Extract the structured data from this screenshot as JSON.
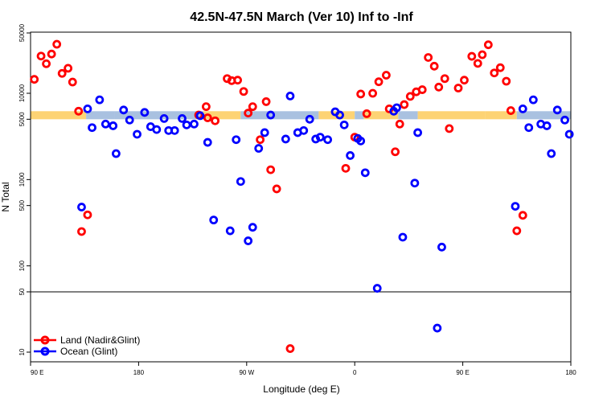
{
  "chart_data": {
    "type": "scatter",
    "title": "42.5N-47.5N March (Ver 10)   Inf to -Inf",
    "xlabel": "Longitude (deg E)",
    "ylabel": "N Total",
    "xscale": "linear",
    "yscale": "log",
    "xlim": [
      90,
      450
    ],
    "ylim": [
      10,
      50000
    ],
    "x_ticks": [
      {
        "value": 90,
        "label": "90 E"
      },
      {
        "value": 162,
        "label": "180"
      },
      {
        "value": 234,
        "label": "90 W"
      },
      {
        "value": 306,
        "label": "0"
      },
      {
        "value": 378,
        "label": "90 E"
      },
      {
        "value": 450,
        "label": "180"
      }
    ],
    "y_ticks": [
      {
        "value": 10,
        "label": "10"
      },
      {
        "value": 50,
        "label": "50"
      },
      {
        "value": 100,
        "label": "100"
      },
      {
        "value": 500,
        "label": "500"
      },
      {
        "value": 1000,
        "label": "1000"
      },
      {
        "value": 5000,
        "label": "5000"
      },
      {
        "value": 10000,
        "label": "10000"
      },
      {
        "value": 50000,
        "label": "50000"
      }
    ],
    "reference_line": 50,
    "band": {
      "y_low": 5000,
      "y_high": 6200,
      "colors": {
        "land": "#fdd374",
        "ocean": "#a9c1e0"
      },
      "segments": [
        {
          "x0": 90,
          "x1": 127,
          "type": "land"
        },
        {
          "x0": 127,
          "x1": 146,
          "type": "ocean"
        },
        {
          "x0": 146,
          "x1": 205,
          "type": "ocean"
        },
        {
          "x0": 205,
          "x1": 230,
          "type": "land"
        },
        {
          "x0": 230,
          "x1": 282,
          "type": "ocean"
        },
        {
          "x0": 282,
          "x1": 306,
          "type": "land"
        },
        {
          "x0": 306,
          "x1": 312,
          "type": "ocean"
        },
        {
          "x0": 312,
          "x1": 335,
          "type": "land"
        },
        {
          "x0": 335,
          "x1": 348,
          "type": "ocean"
        },
        {
          "x0": 348,
          "x1": 393,
          "type": "land"
        },
        {
          "x0": 393,
          "x1": 414,
          "type": "land"
        },
        {
          "x0": 414,
          "x1": 450,
          "type": "ocean"
        }
      ]
    },
    "legend": {
      "position": "bottom-left"
    },
    "series": [
      {
        "name": "Land (Nadir&Glint)",
        "color": "#ff0000",
        "points": [
          [
            92.5,
            14500
          ],
          [
            97,
            27000
          ],
          [
            100.5,
            22000
          ],
          [
            104,
            28500
          ],
          [
            107.5,
            37000
          ],
          [
            111,
            17000
          ],
          [
            115,
            19500
          ],
          [
            118,
            13500
          ],
          [
            122,
            6200
          ],
          [
            124,
            250
          ],
          [
            128,
            390
          ],
          [
            202,
            5600
          ],
          [
            207,
            7000
          ],
          [
            208,
            5200
          ],
          [
            213,
            4800
          ],
          [
            221,
            14800
          ],
          [
            224,
            14000
          ],
          [
            228,
            14200
          ],
          [
            232,
            10500
          ],
          [
            235,
            5900
          ],
          [
            238,
            7000
          ],
          [
            243,
            2900
          ],
          [
            247,
            8000
          ],
          [
            250,
            1300
          ],
          [
            254,
            780
          ],
          [
            263,
            11
          ],
          [
            300,
            1350
          ],
          [
            306,
            3100
          ],
          [
            310,
            9800
          ],
          [
            314,
            5800
          ],
          [
            318,
            10000
          ],
          [
            322,
            13600
          ],
          [
            327,
            16200
          ],
          [
            329,
            6600
          ],
          [
            333,
            2100
          ],
          [
            336,
            4400
          ],
          [
            339,
            7400
          ],
          [
            343,
            9200
          ],
          [
            347,
            10400
          ],
          [
            351,
            11000
          ],
          [
            355,
            26000
          ],
          [
            359,
            20600
          ],
          [
            362,
            11800
          ],
          [
            366,
            14800
          ],
          [
            369,
            3900
          ],
          [
            375,
            11500
          ],
          [
            379,
            14200
          ],
          [
            384,
            26800
          ],
          [
            388,
            22200
          ],
          [
            391,
            28000
          ],
          [
            395,
            36500
          ],
          [
            399,
            17200
          ],
          [
            403,
            19800
          ],
          [
            407,
            13800
          ],
          [
            410,
            6300
          ],
          [
            414,
            255
          ],
          [
            418,
            385
          ]
        ]
      },
      {
        "name": "Ocean (Glint)",
        "color": "#0000ff",
        "points": [
          [
            124,
            480
          ],
          [
            128,
            6600
          ],
          [
            131,
            4000
          ],
          [
            136,
            8400
          ],
          [
            140,
            4400
          ],
          [
            145,
            4200
          ],
          [
            147,
            2000
          ],
          [
            152,
            6400
          ],
          [
            156,
            4900
          ],
          [
            161,
            3350
          ],
          [
            166,
            6000
          ],
          [
            170,
            4100
          ],
          [
            174,
            3800
          ],
          [
            179,
            5100
          ],
          [
            182,
            3700
          ],
          [
            186,
            3700
          ],
          [
            191,
            5100
          ],
          [
            194,
            4300
          ],
          [
            199,
            4400
          ],
          [
            203,
            5500
          ],
          [
            208,
            2700
          ],
          [
            212,
            340
          ],
          [
            223,
            255
          ],
          [
            227,
            2900
          ],
          [
            230,
            950
          ],
          [
            235,
            195
          ],
          [
            238,
            280
          ],
          [
            242,
            2300
          ],
          [
            246,
            3500
          ],
          [
            250,
            5600
          ],
          [
            260,
            2950
          ],
          [
            263,
            9300
          ],
          [
            268,
            3500
          ],
          [
            272,
            3700
          ],
          [
            276,
            5000
          ],
          [
            280,
            2950
          ],
          [
            283,
            3100
          ],
          [
            288,
            2900
          ],
          [
            293,
            6100
          ],
          [
            296,
            5600
          ],
          [
            299,
            4300
          ],
          [
            303,
            1900
          ],
          [
            308,
            3000
          ],
          [
            310,
            2800
          ],
          [
            313,
            1200
          ],
          [
            321,
            55
          ],
          [
            332,
            6200
          ],
          [
            334,
            6800
          ],
          [
            338,
            215
          ],
          [
            346,
            910
          ],
          [
            348,
            3500
          ],
          [
            361,
            19
          ],
          [
            364,
            165
          ],
          [
            413,
            490
          ],
          [
            418,
            6600
          ],
          [
            422,
            4000
          ],
          [
            425,
            8400
          ],
          [
            430,
            4400
          ],
          [
            434,
            4200
          ],
          [
            437,
            2000
          ],
          [
            441,
            6400
          ],
          [
            446,
            4900
          ],
          [
            449,
            3350
          ]
        ]
      }
    ]
  }
}
